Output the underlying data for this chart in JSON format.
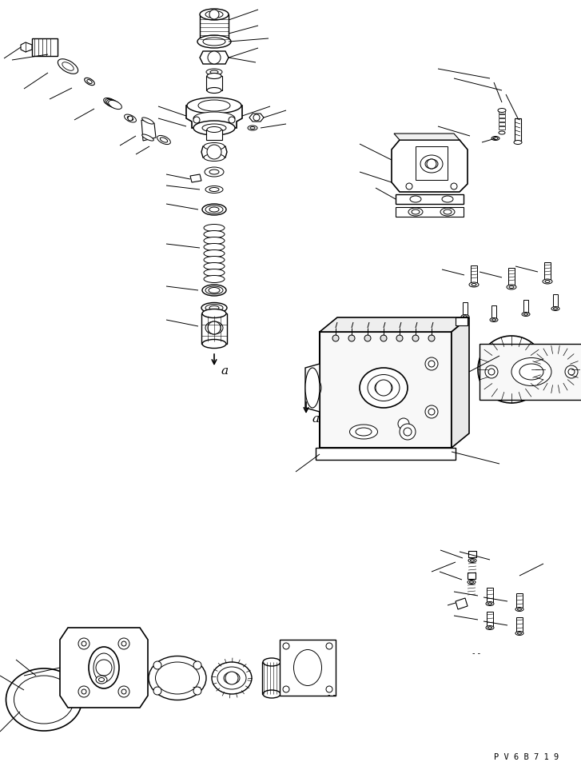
{
  "bg_color": "#ffffff",
  "line_color": "#000000",
  "fig_width": 7.27,
  "fig_height": 9.58,
  "dpi": 100,
  "watermark": "P V 6 B 7 1 9"
}
